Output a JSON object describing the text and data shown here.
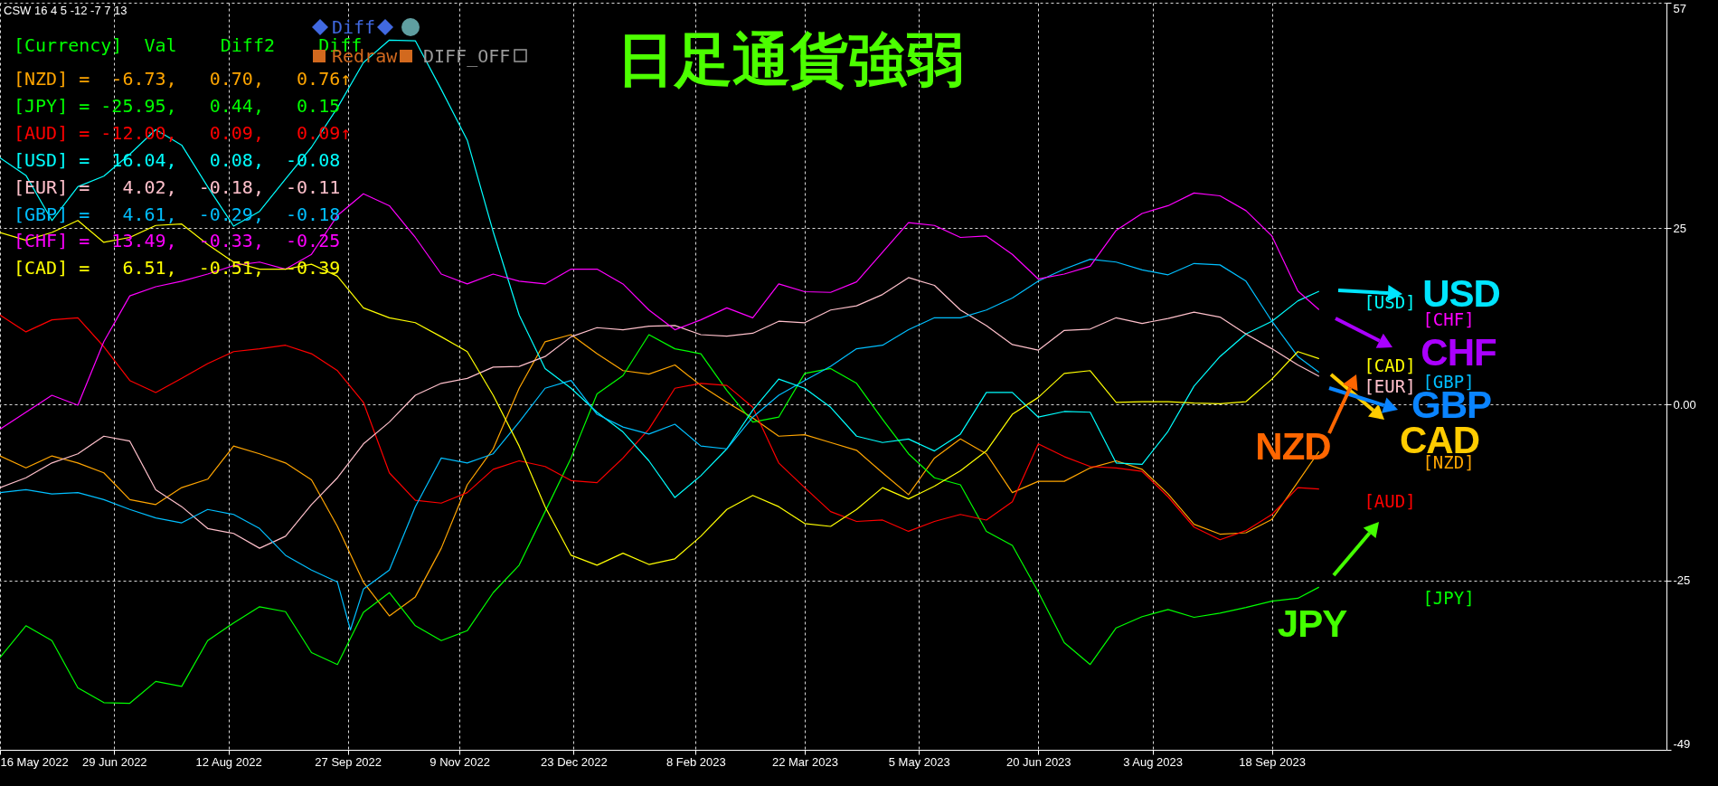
{
  "chart_data": {
    "type": "line",
    "title": "日足通貨強弱",
    "x": [
      "2022-05-16",
      "2022-05-26",
      "2022-06-05",
      "2022-06-15",
      "2022-06-25",
      "2022-07-05",
      "2022-07-15",
      "2022-07-25",
      "2022-08-04",
      "2022-08-14",
      "2022-08-24",
      "2022-09-03",
      "2022-09-13",
      "2022-09-23",
      "2022-10-03",
      "2022-10-13",
      "2022-10-23",
      "2022-11-02",
      "2022-11-12",
      "2022-11-22",
      "2022-12-02",
      "2022-12-12",
      "2022-12-22",
      "2023-01-01",
      "2023-01-11",
      "2023-01-21",
      "2023-01-31",
      "2023-02-10",
      "2023-02-20",
      "2023-03-02",
      "2023-03-12",
      "2023-03-22",
      "2023-04-01",
      "2023-04-11",
      "2023-04-21",
      "2023-05-01",
      "2023-05-11",
      "2023-05-21",
      "2023-05-31",
      "2023-06-10",
      "2023-06-20",
      "2023-06-30",
      "2023-07-10",
      "2023-07-20",
      "2023-07-30",
      "2023-08-09",
      "2023-08-19",
      "2023-08-29",
      "2023-09-08",
      "2023-09-18",
      "2023-09-28",
      "2023-10-06"
    ],
    "series": [
      {
        "name": "[NZD]",
        "color": "#ffa500",
        "values": [
          -7.3,
          -9.0,
          -7.3,
          -8.3,
          -9.7,
          -13.5,
          -14.2,
          -11.8,
          -10.6,
          -5.9,
          -7.0,
          -8.3,
          -10.7,
          -17.3,
          -25.2,
          -30.0,
          -27.3,
          -20.4,
          -11.4,
          -6.3,
          2.3,
          8.9,
          9.9,
          7.2,
          4.8,
          4.3,
          5.6,
          2.7,
          0.3,
          -1.9,
          -4.5,
          -4.3,
          -5.4,
          -6.5,
          -9.7,
          -12.8,
          -7.6,
          -4.9,
          -7.0,
          -12.5,
          -10.9,
          -10.9,
          -9.0,
          -8.0,
          -9.2,
          -12.7,
          -17.0,
          -18.4,
          -18.2,
          -16.3,
          -11.0,
          -6.73
        ]
      },
      {
        "name": "[JPY]",
        "color": "#00ff00",
        "values": [
          -35.9,
          -31.4,
          -33.5,
          -40.2,
          -42.3,
          -42.4,
          -39.3,
          -40.0,
          -33.5,
          -31.0,
          -28.7,
          -29.4,
          -35.2,
          -36.9,
          -29.5,
          -26.7,
          -31.4,
          -33.5,
          -32.1,
          -26.7,
          -22.8,
          -15.2,
          -7.6,
          1.5,
          4.1,
          9.9,
          7.9,
          7.2,
          2.0,
          -2.5,
          -1.8,
          4.4,
          5.1,
          3.0,
          -2.1,
          -7.0,
          -10.4,
          -11.4,
          -18.0,
          -20.0,
          -26.6,
          -33.8,
          -36.9,
          -31.7,
          -30.1,
          -29.1,
          -30.2,
          -29.6,
          -28.8,
          -27.9,
          -27.5,
          -25.95
        ]
      },
      {
        "name": "[AUD]",
        "color": "#ff0000",
        "values": [
          12.7,
          10.3,
          12.0,
          12.3,
          8.2,
          3.4,
          1.7,
          3.7,
          5.8,
          7.5,
          7.9,
          8.4,
          7.2,
          4.8,
          0.3,
          -9.7,
          -13.6,
          -14.0,
          -12.5,
          -9.2,
          -8.0,
          -8.8,
          -10.8,
          -11.1,
          -7.6,
          -3.5,
          2.3,
          3.0,
          2.7,
          -0.4,
          -8.3,
          -11.8,
          -15.2,
          -16.6,
          -16.4,
          -18.0,
          -16.6,
          -15.6,
          -16.4,
          -13.8,
          -5.6,
          -7.4,
          -8.8,
          -9.0,
          -9.5,
          -13.1,
          -17.4,
          -19.2,
          -17.9,
          -15.6,
          -11.8,
          -12.0
        ]
      },
      {
        "name": "[USD]",
        "color": "#00ffff",
        "values": [
          35.0,
          32.5,
          26.1,
          30.9,
          32.4,
          35.5,
          39.0,
          36.8,
          30.9,
          25.3,
          27.4,
          32.0,
          36.5,
          42.1,
          48.5,
          51.7,
          51.6,
          44.7,
          37.5,
          24.5,
          12.7,
          5.1,
          2.3,
          -1.1,
          -3.9,
          -8.0,
          -13.2,
          -10.1,
          -6.3,
          -0.8,
          3.6,
          2.3,
          -0.4,
          -4.5,
          -5.4,
          -4.9,
          -6.6,
          -4.2,
          1.7,
          1.7,
          -1.8,
          -1.0,
          -1.1,
          -8.3,
          -8.5,
          -3.8,
          2.6,
          6.8,
          10.0,
          11.8,
          14.7,
          16.04
        ]
      },
      {
        "name": "[EUR]",
        "color": "#ffc0cb",
        "values": [
          -11.8,
          -10.4,
          -8.3,
          -7.0,
          -4.5,
          -5.2,
          -12.1,
          -14.5,
          -17.6,
          -18.3,
          -20.4,
          -18.7,
          -14.2,
          -10.4,
          -5.6,
          -2.5,
          1.3,
          3.0,
          3.7,
          5.3,
          5.4,
          6.8,
          9.6,
          10.9,
          10.6,
          11.1,
          11.2,
          9.9,
          9.7,
          10.1,
          11.8,
          11.6,
          13.4,
          14.0,
          15.6,
          18.0,
          16.9,
          13.4,
          11.2,
          8.5,
          7.7,
          10.5,
          10.7,
          12.3,
          11.5,
          12.2,
          13.1,
          12.4,
          10.0,
          7.9,
          5.6,
          4.02
        ]
      },
      {
        "name": "[GBP]",
        "color": "#00bfff",
        "x": [
          "2022-05-16",
          "2022-05-26",
          "2022-06-05",
          "2022-06-15",
          "2022-06-25",
          "2022-07-05",
          "2022-07-15",
          "2022-07-25",
          "2022-08-04",
          "2022-08-14",
          "2022-08-24",
          "2022-09-03",
          "2022-09-13",
          "2022-09-23",
          "2022-09-28",
          "2022-10-03",
          "2022-10-13",
          "2022-10-23",
          "2022-11-02",
          "2022-11-12",
          "2022-11-22",
          "2022-12-02",
          "2022-12-12",
          "2022-12-22",
          "2023-01-01",
          "2023-01-11",
          "2023-01-21",
          "2023-01-31",
          "2023-02-10",
          "2023-02-20",
          "2023-03-02",
          "2023-03-12",
          "2023-03-22",
          "2023-04-01",
          "2023-04-11",
          "2023-04-21",
          "2023-05-01",
          "2023-05-11",
          "2023-05-21",
          "2023-05-31",
          "2023-06-10",
          "2023-06-20",
          "2023-06-30",
          "2023-07-10",
          "2023-07-20",
          "2023-07-30",
          "2023-08-09",
          "2023-08-19",
          "2023-08-29",
          "2023-09-08",
          "2023-09-18",
          "2023-09-28",
          "2023-10-06"
        ],
        "values": [
          -12.5,
          -12.1,
          -12.7,
          -12.5,
          -13.5,
          -14.9,
          -16.1,
          -16.8,
          -14.9,
          -15.6,
          -17.6,
          -21.4,
          -23.5,
          -25.2,
          -32.0,
          -26.2,
          -23.5,
          -14.5,
          -7.6,
          -8.3,
          -7.0,
          -2.5,
          2.3,
          3.4,
          -1.4,
          -3.2,
          -4.2,
          -2.8,
          -5.9,
          -6.3,
          -1.8,
          1.3,
          3.4,
          5.4,
          7.9,
          8.4,
          10.6,
          12.3,
          12.3,
          13.4,
          15.1,
          17.5,
          19.2,
          20.6,
          20.2,
          19.1,
          18.4,
          20.0,
          19.8,
          17.5,
          11.8,
          6.8,
          4.61
        ]
      },
      {
        "name": "[CHF]",
        "color": "#ff00ff",
        "values": [
          -3.5,
          -1.1,
          1.3,
          -0.1,
          8.9,
          15.4,
          16.7,
          17.5,
          18.5,
          19.7,
          20.2,
          19.2,
          21.3,
          26.8,
          29.9,
          28.2,
          23.7,
          18.5,
          17.1,
          18.5,
          17.5,
          17.1,
          19.2,
          19.2,
          17.1,
          13.4,
          10.6,
          12.0,
          13.7,
          12.3,
          17.1,
          16.0,
          15.9,
          17.4,
          21.6,
          25.8,
          25.4,
          23.7,
          23.9,
          21.3,
          17.8,
          18.5,
          19.6,
          24.7,
          27.1,
          28.2,
          30.0,
          29.6,
          27.5,
          23.9,
          16.1,
          13.49
        ]
      },
      {
        "name": "[CAD]",
        "color": "#ffff00",
        "values": [
          24.4,
          23.3,
          24.4,
          26.1,
          23.0,
          23.7,
          25.4,
          25.6,
          22.7,
          20.2,
          19.2,
          19.2,
          19.9,
          18.2,
          13.7,
          12.3,
          11.6,
          9.6,
          7.5,
          1.3,
          -5.9,
          -14.5,
          -21.4,
          -22.8,
          -21.1,
          -22.7,
          -21.9,
          -18.7,
          -14.9,
          -12.9,
          -14.5,
          -16.9,
          -17.3,
          -14.9,
          -11.8,
          -13.4,
          -11.6,
          -9.4,
          -6.6,
          -1.4,
          1.0,
          4.4,
          4.8,
          0.3,
          0.4,
          0.4,
          0.2,
          0.1,
          0.4,
          3.6,
          7.5,
          6.51
        ]
      }
    ],
    "xlim": [
      "2022-05-16",
      "2024-02-17"
    ],
    "xticks": [
      {
        "value": "2022-05-16",
        "label": "16 May 2022"
      },
      {
        "value": "2022-06-29",
        "label": "29 Jun 2022"
      },
      {
        "value": "2022-08-12",
        "label": "12 Aug 2022"
      },
      {
        "value": "2022-09-27",
        "label": "27 Sep 2022"
      },
      {
        "value": "2022-11-09",
        "label": "9 Nov 2022"
      },
      {
        "value": "2022-12-23",
        "label": "23 Dec 2022"
      },
      {
        "value": "2023-02-08",
        "label": "8 Feb 2023"
      },
      {
        "value": "2023-03-22",
        "label": "22 Mar 2023"
      },
      {
        "value": "2023-05-05",
        "label": "5 May 2023"
      },
      {
        "value": "2023-06-20",
        "label": "20 Jun 2023"
      },
      {
        "value": "2023-08-03",
        "label": "3 Aug 2023"
      },
      {
        "value": "2023-09-18",
        "label": "18 Sep 2023"
      }
    ],
    "ylim": [
      -49,
      57
    ],
    "yticks": [
      57,
      25,
      {
        "value": 0,
        "label": "0.00"
      },
      -25,
      -49
    ],
    "grid": true,
    "annotations": [
      "CSW 16 4 5 -12 -7 7 13",
      "[Currency]  Val    Diff2    Diff",
      "[NZD] =  -6.73,   0.70,   0.76↑",
      "[JPY] = -25.95,   0.44,   0.15",
      "[AUD] = -12.00,   0.09,   0.09↑",
      "[USD] =  16.04,   0.08,  -0.08",
      "[EUR] =   4.02,  -0.18,  -0.11",
      "[GBP] =   4.61,  -0.29,  -0.18",
      "[CHF] =  13.49,  -0.33,  -0.25",
      "[CAD] =   6.51,  -0.51,  -0.39",
      "Diff",
      "Redraw",
      "DIFF_OFF",
      "USD",
      "CHF",
      "GBP",
      "CAD",
      "NZD",
      "JPY"
    ]
  }
}
